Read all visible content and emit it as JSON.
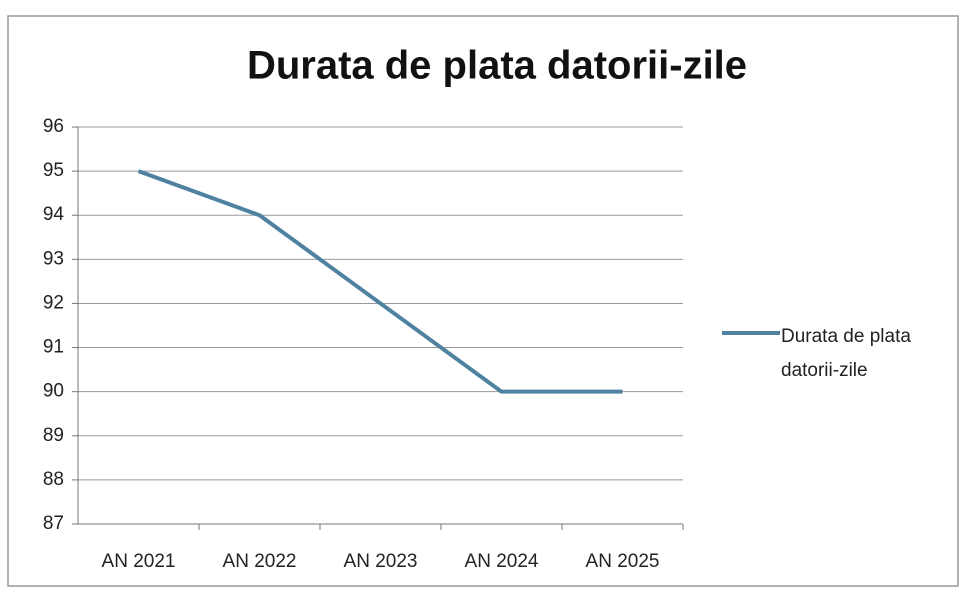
{
  "chart_data": {
    "type": "line",
    "title": "Durata de plata datorii-zile",
    "categories": [
      "AN 2021",
      "AN 2022",
      "AN 2023",
      "AN 2024",
      "AN 2025"
    ],
    "series": [
      {
        "name": "Durata de plata datorii-zile",
        "color": "#4f81a0",
        "values": [
          95,
          94,
          92,
          90,
          90
        ]
      }
    ],
    "ylim": [
      87,
      96
    ],
    "yticks": [
      87,
      88,
      89,
      90,
      91,
      92,
      93,
      94,
      95,
      96
    ],
    "grid": true,
    "legend": "right"
  }
}
